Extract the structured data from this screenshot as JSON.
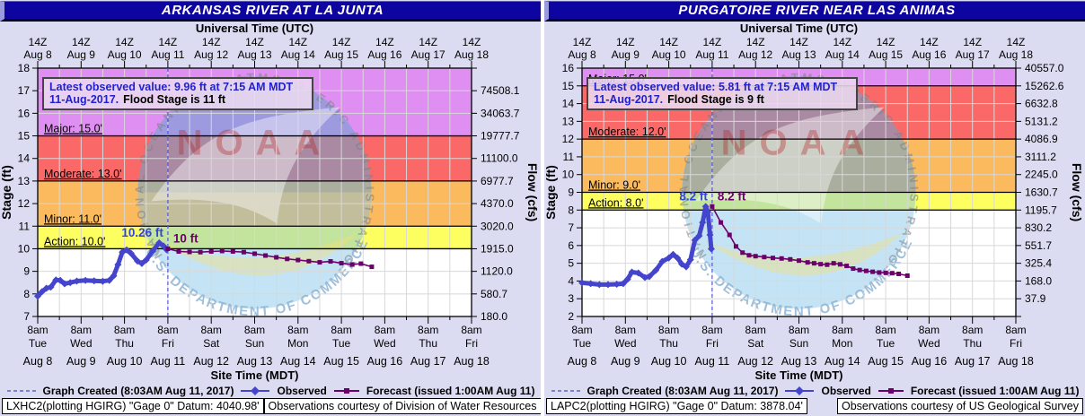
{
  "shared": {
    "utc_label": "Universal Time (UTC)",
    "site_time_label": "Site Time (MDT)",
    "stage_axis_label": "Stage (ft)",
    "flow_axis_label": "Flow (cfs)",
    "top_tick": "14Z",
    "bottom_tick": "8am",
    "legend": {
      "created": "Graph Created (8:03AM Aug 11, 2017)",
      "observed": "Observed",
      "forecast": "Forecast (issued 1:00AM Aug 11)"
    },
    "watermark": {
      "ring": "NATIONAL OCEANIC AND ATMOSPHERIC ADMINISTRATION",
      "commerce": "U.S. DEPARTMENT OF COMMERCE",
      "noaa": "NOAA"
    },
    "colors": {
      "titlebar": "#0e04a0",
      "observed": "#4444cc",
      "forecast": "#6b006b",
      "created_line": "#5555dd",
      "action": "#fdff60",
      "minor": "#fbba5e",
      "moderate": "#fb6868",
      "major": "#df8ef2",
      "annotation_text": "#2222cc",
      "gridline": "#d8d8d8"
    }
  },
  "panels": [
    {
      "title": "ARKANSAS RIVER AT LA JUNTA",
      "station_info": "LXHC2(plotting HGIRG) \"Gage 0\" Datum: 4040.98'",
      "courtesy": "Observations courtesy of Division of Water Resources",
      "annotation": {
        "line1": "Latest observed value: 9.96 ft at 7:15 AM MDT",
        "date": "11-Aug-2017.",
        "flood": "Flood Stage is 11 ft"
      },
      "observed_peak_label": "10.26 ft",
      "forecast_start_label": "10 ft"
    },
    {
      "title": "PURGATOIRE RIVER NEAR LAS ANIMAS",
      "station_info": "LAPC2(plotting HGIRG) \"Gage 0\" Datum: 3878.04'",
      "courtesy": "Observations courtesy of US Geological Survey",
      "annotation": {
        "line1": "Latest observed value: 5.81 ft at 7:15 AM MDT",
        "date": "11-Aug-2017.",
        "flood": "Flood Stage is 9 ft"
      },
      "observed_peak_label": "8.2 ft",
      "forecast_start_label": "8.2 ft"
    }
  ],
  "chart_data": [
    {
      "type": "line",
      "title": "ARKANSAS RIVER AT LA JUNTA",
      "xlabel": "Site Time (MDT)",
      "ylabel": "Stage (ft)",
      "y2label": "Flow (cfs)",
      "x_unit": "days since Aug 8 8am MDT",
      "x_range": [
        0,
        10
      ],
      "dates": [
        "Aug 8",
        "Aug 9",
        "Aug 10",
        "Aug 11",
        "Aug 12",
        "Aug 13",
        "Aug 14",
        "Aug 15",
        "Aug 16",
        "Aug 17",
        "Aug 18"
      ],
      "weekdays": [
        "Tue",
        "Wed",
        "Thu",
        "Fri",
        "Sat",
        "Sun",
        "Mon",
        "Tue",
        "Wed",
        "Thu",
        "Fri"
      ],
      "stage_min": 7,
      "stage_max": 18,
      "flood_stage_ft": 11,
      "graph_created_day": 3.0,
      "bands": [
        {
          "name": "action",
          "label": "Action: 10.0'",
          "from": 10,
          "to": 11
        },
        {
          "name": "minor",
          "label": "Minor: 11.0'",
          "from": 11,
          "to": 13
        },
        {
          "name": "moderate",
          "label": "Moderate: 13.0'",
          "from": 13,
          "to": 15
        },
        {
          "name": "major",
          "label": "Major: 15.0'",
          "from": 15,
          "to": 18
        }
      ],
      "flow_labels": [
        [
          17,
          "74508.1"
        ],
        [
          16,
          "34063.7"
        ],
        [
          15,
          "19777.7"
        ],
        [
          14,
          "11100.0"
        ],
        [
          13,
          "6977.7"
        ],
        [
          12,
          "4370.0"
        ],
        [
          11,
          "3020.0"
        ],
        [
          10,
          "1915.0"
        ],
        [
          9,
          "1120.0"
        ],
        [
          8,
          "580.7"
        ],
        [
          7,
          "180.0"
        ]
      ],
      "observed": [
        [
          0,
          7.9
        ],
        [
          0.1,
          8.1
        ],
        [
          0.2,
          8.25
        ],
        [
          0.3,
          8.3
        ],
        [
          0.42,
          8.62
        ],
        [
          0.52,
          8.6
        ],
        [
          0.62,
          8.45
        ],
        [
          0.75,
          8.5
        ],
        [
          0.9,
          8.57
        ],
        [
          1.1,
          8.6
        ],
        [
          1.3,
          8.58
        ],
        [
          1.5,
          8.56
        ],
        [
          1.65,
          8.6
        ],
        [
          1.75,
          8.8
        ],
        [
          1.85,
          9.3
        ],
        [
          1.95,
          9.85
        ],
        [
          2.05,
          9.95
        ],
        [
          2.15,
          9.8
        ],
        [
          2.3,
          9.45
        ],
        [
          2.4,
          9.35
        ],
        [
          2.5,
          9.5
        ],
        [
          2.65,
          9.9
        ],
        [
          2.8,
          10.26
        ],
        [
          2.9,
          10.12
        ],
        [
          2.97,
          9.96
        ]
      ],
      "forecast": [
        [
          3.0,
          10.0
        ],
        [
          3.25,
          9.88
        ],
        [
          3.5,
          9.86
        ],
        [
          3.75,
          9.85
        ],
        [
          4.0,
          9.88
        ],
        [
          4.25,
          9.9
        ],
        [
          4.5,
          9.88
        ],
        [
          4.75,
          9.85
        ],
        [
          5.0,
          9.78
        ],
        [
          5.25,
          9.7
        ],
        [
          5.5,
          9.62
        ],
        [
          5.75,
          9.55
        ],
        [
          6.0,
          9.5
        ],
        [
          6.25,
          9.45
        ],
        [
          6.5,
          9.4
        ],
        [
          6.75,
          9.44
        ],
        [
          7.0,
          9.36
        ],
        [
          7.25,
          9.3
        ],
        [
          7.45,
          9.34
        ],
        [
          7.7,
          9.2
        ]
      ]
    },
    {
      "type": "line",
      "title": "PURGATOIRE RIVER NEAR LAS ANIMAS",
      "xlabel": "Site Time (MDT)",
      "ylabel": "Stage (ft)",
      "y2label": "Flow (cfs)",
      "x_unit": "days since Aug 8 8am MDT",
      "x_range": [
        0,
        10
      ],
      "dates": [
        "Aug 8",
        "Aug 9",
        "Aug 10",
        "Aug 11",
        "Aug 12",
        "Aug 13",
        "Aug 14",
        "Aug 15",
        "Aug 16",
        "Aug 17",
        "Aug 18"
      ],
      "weekdays": [
        "Tue",
        "Wed",
        "Thu",
        "Fri",
        "Sat",
        "Sun",
        "Mon",
        "Tue",
        "Wed",
        "Thu",
        "Fri"
      ],
      "stage_min": 2,
      "stage_max": 16,
      "flood_stage_ft": 9,
      "graph_created_day": 3.0,
      "bands": [
        {
          "name": "action",
          "label": "Action: 8.0'",
          "from": 8,
          "to": 9
        },
        {
          "name": "minor",
          "label": "Minor: 9.0'",
          "from": 9,
          "to": 12
        },
        {
          "name": "moderate",
          "label": "Moderate: 12.0'",
          "from": 12,
          "to": 15
        },
        {
          "name": "major",
          "label": "Major: 15.0'",
          "from": 15,
          "to": 16
        }
      ],
      "flow_labels": [
        [
          16,
          "40557.0"
        ],
        [
          15,
          "15262.6"
        ],
        [
          14,
          "6632.8"
        ],
        [
          13,
          "5131.2"
        ],
        [
          12,
          "4086.9"
        ],
        [
          11,
          "3111.2"
        ],
        [
          10,
          "2245.0"
        ],
        [
          9,
          "1630.7"
        ],
        [
          8,
          "1195.7"
        ],
        [
          7,
          "830.2"
        ],
        [
          6,
          "551.7"
        ],
        [
          5,
          "325.4"
        ],
        [
          4,
          "168.0"
        ],
        [
          3,
          "37.9"
        ]
      ],
      "observed": [
        [
          0,
          3.9
        ],
        [
          0.2,
          3.85
        ],
        [
          0.4,
          3.8
        ],
        [
          0.6,
          3.8
        ],
        [
          0.8,
          3.82
        ],
        [
          0.95,
          3.85
        ],
        [
          1.05,
          4.1
        ],
        [
          1.15,
          4.5
        ],
        [
          1.3,
          4.45
        ],
        [
          1.45,
          4.2
        ],
        [
          1.55,
          4.25
        ],
        [
          1.7,
          4.6
        ],
        [
          1.85,
          5.1
        ],
        [
          2.0,
          5.3
        ],
        [
          2.1,
          5.5
        ],
        [
          2.2,
          5.3
        ],
        [
          2.3,
          4.95
        ],
        [
          2.4,
          4.8
        ],
        [
          2.5,
          5.2
        ],
        [
          2.6,
          6.3
        ],
        [
          2.7,
          6.55
        ],
        [
          2.78,
          7.3
        ],
        [
          2.85,
          8.2
        ],
        [
          2.9,
          7.9
        ],
        [
          2.95,
          6.6
        ],
        [
          2.98,
          5.81
        ]
      ],
      "forecast": [
        [
          3.0,
          8.2
        ],
        [
          3.2,
          7.3
        ],
        [
          3.4,
          6.6
        ],
        [
          3.55,
          5.95
        ],
        [
          3.7,
          5.6
        ],
        [
          3.85,
          5.45
        ],
        [
          4.0,
          5.4
        ],
        [
          4.2,
          5.35
        ],
        [
          4.4,
          5.3
        ],
        [
          4.6,
          5.27
        ],
        [
          4.8,
          5.22
        ],
        [
          5.0,
          5.15
        ],
        [
          5.2,
          5.05
        ],
        [
          5.35,
          5.0
        ],
        [
          5.5,
          4.95
        ],
        [
          5.65,
          4.92
        ],
        [
          5.8,
          5.0
        ],
        [
          5.95,
          4.94
        ],
        [
          6.1,
          4.85
        ],
        [
          6.25,
          4.7
        ],
        [
          6.4,
          4.62
        ],
        [
          6.55,
          4.57
        ],
        [
          6.7,
          4.52
        ],
        [
          6.85,
          4.48
        ],
        [
          7.0,
          4.46
        ],
        [
          7.15,
          4.44
        ],
        [
          7.3,
          4.4
        ],
        [
          7.5,
          4.3
        ]
      ]
    }
  ]
}
